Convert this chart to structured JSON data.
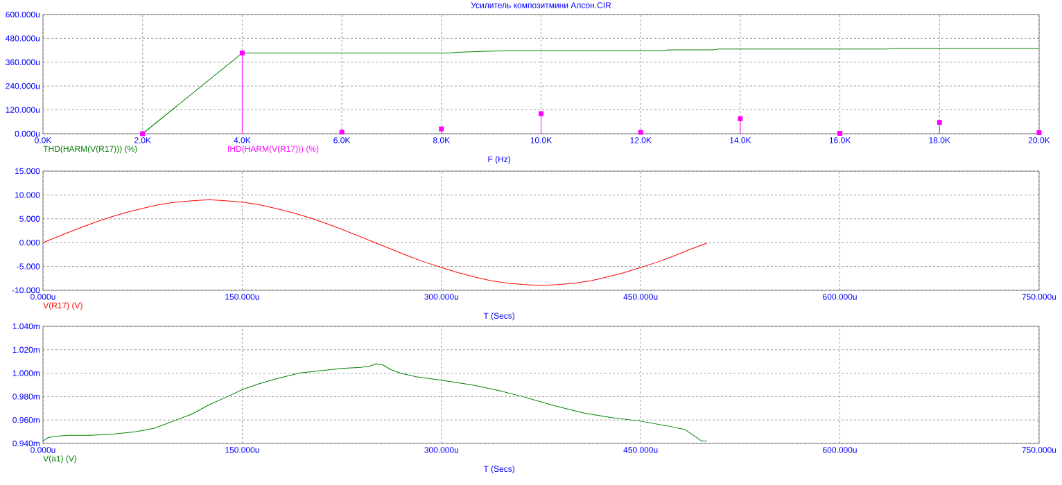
{
  "chart_data": [
    {
      "type": "line",
      "title": "Усилитель композитмини Алсон.CIR",
      "xlabel": "F (Hz)",
      "xlim": [
        0,
        20000
      ],
      "xticks": [
        {
          "value": 0,
          "label": "0.0K"
        },
        {
          "value": 2000,
          "label": "2.0K"
        },
        {
          "value": 4000,
          "label": "4.0K"
        },
        {
          "value": 6000,
          "label": "6.0K"
        },
        {
          "value": 8000,
          "label": "8.0K"
        },
        {
          "value": 10000,
          "label": "10.0K"
        },
        {
          "value": 12000,
          "label": "12.0K"
        },
        {
          "value": 14000,
          "label": "14.0K"
        },
        {
          "value": 16000,
          "label": "16.0K"
        },
        {
          "value": 18000,
          "label": "18.0K"
        },
        {
          "value": 20000,
          "label": "20.0K"
        }
      ],
      "ylim": [
        0,
        600
      ],
      "yticks": [
        {
          "value": 0,
          "label": "0.000u"
        },
        {
          "value": 120,
          "label": "120.000u"
        },
        {
          "value": 240,
          "label": "240.000u"
        },
        {
          "value": 360,
          "label": "360.000u"
        },
        {
          "value": 480,
          "label": "480.000u"
        },
        {
          "value": 600,
          "label": "600.000u"
        }
      ],
      "grid": true,
      "legend": "bottom left",
      "series": [
        {
          "name": "THD(HARM(V(R17))) (%)",
          "type": "line",
          "color": "#008000",
          "x": [
            2000,
            4000,
            8200,
            8300,
            8800,
            9300,
            12450,
            12550,
            13450,
            13550,
            16950,
            17050,
            20000
          ],
          "values": [
            0,
            406,
            406,
            410,
            414,
            418,
            418,
            422,
            422,
            426,
            426,
            430,
            430
          ]
        },
        {
          "name": "IHD(HARM(V(R17))) (%)",
          "type": "lollipop",
          "marker": "square",
          "color": "#ff00ff",
          "x": [
            2000,
            4000,
            6000,
            8000,
            10000,
            12000,
            14000,
            16000,
            18000,
            20000
          ],
          "values": [
            0,
            406,
            8,
            24,
            101,
            7,
            76,
            2,
            57,
            5
          ]
        }
      ]
    },
    {
      "type": "line",
      "xlabel": "T (Secs)",
      "xlim": [
        0,
        750
      ],
      "xticks": [
        {
          "value": 0,
          "label": "0.000u"
        },
        {
          "value": 150,
          "label": "150.000u"
        },
        {
          "value": 300,
          "label": "300.000u"
        },
        {
          "value": 450,
          "label": "450.000u"
        },
        {
          "value": 600,
          "label": "600.000u"
        },
        {
          "value": 750,
          "label": "750.000u"
        }
      ],
      "ylim": [
        -10,
        15
      ],
      "yticks": [
        {
          "value": -10,
          "label": "-10.000"
        },
        {
          "value": -5,
          "label": "-5.000"
        },
        {
          "value": 0,
          "label": "0.000"
        },
        {
          "value": 5,
          "label": "5.000"
        },
        {
          "value": 10,
          "label": "10.000"
        },
        {
          "value": 15,
          "label": "15.000"
        }
      ],
      "grid": true,
      "legend": "bottom left",
      "series": [
        {
          "name": "V(R17) (V)",
          "color": "#ff0000",
          "x": [
            0,
            12.5,
            25,
            37.5,
            50,
            62.5,
            75,
            87.5,
            100,
            112.5,
            125,
            137.5,
            150,
            162.5,
            175,
            187.5,
            200,
            212.5,
            225,
            237.5,
            250,
            262.5,
            275,
            287.5,
            300,
            312.5,
            325,
            337.5,
            350,
            362.5,
            375,
            387.5,
            400,
            412.5,
            425,
            437.5,
            450,
            462.5,
            475,
            487.5,
            500
          ],
          "values": [
            0,
            1.4,
            2.8,
            4.1,
            5.3,
            6.3,
            7.2,
            8.0,
            8.5,
            8.8,
            9.0,
            8.8,
            8.5,
            8.0,
            7.2,
            6.3,
            5.3,
            4.1,
            2.8,
            1.4,
            0,
            -1.4,
            -2.8,
            -4.1,
            -5.2,
            -6.3,
            -7.2,
            -8.0,
            -8.5,
            -8.8,
            -9.0,
            -8.8,
            -8.5,
            -8.0,
            -7.2,
            -6.3,
            -5.2,
            -4.1,
            -2.8,
            -1.4,
            -0.1
          ]
        }
      ]
    },
    {
      "type": "line",
      "xlabel": "T (Secs)",
      "xlim": [
        0,
        750
      ],
      "xticks": [
        {
          "value": 0,
          "label": "0.000u"
        },
        {
          "value": 150,
          "label": "150.000u"
        },
        {
          "value": 300,
          "label": "300.000u"
        },
        {
          "value": 450,
          "label": "450.000u"
        },
        {
          "value": 600,
          "label": "600.000u"
        },
        {
          "value": 750,
          "label": "750.000u"
        }
      ],
      "ylim": [
        0.94,
        1.04
      ],
      "yticks": [
        {
          "value": 0.94,
          "label": "0.940m"
        },
        {
          "value": 0.96,
          "label": "0.960m"
        },
        {
          "value": 0.98,
          "label": "0.980m"
        },
        {
          "value": 1.0,
          "label": "1.000m"
        },
        {
          "value": 1.02,
          "label": "1.020m"
        },
        {
          "value": 1.04,
          "label": "1.040m"
        }
      ],
      "grid": true,
      "legend": "bottom left",
      "series": [
        {
          "name": "V(a1) (V)",
          "color": "#008000",
          "x": [
            0,
            4,
            9,
            19,
            36,
            53,
            70,
            84,
            98,
            112,
            125,
            139,
            150,
            163,
            175,
            193,
            208,
            225,
            239,
            246,
            251,
            256,
            262,
            269,
            281,
            300,
            323,
            344,
            361,
            386,
            407,
            428,
            450,
            470,
            483,
            491,
            496,
            500
          ],
          "values": [
            0.942,
            0.945,
            0.946,
            0.947,
            0.947,
            0.948,
            0.95,
            0.953,
            0.959,
            0.965,
            0.973,
            0.98,
            0.986,
            0.991,
            0.995,
            1.0,
            1.002,
            1.004,
            1.005,
            1.006,
            1.008,
            1.007,
            1.003,
            1.0,
            0.997,
            0.994,
            0.99,
            0.985,
            0.98,
            0.972,
            0.966,
            0.962,
            0.959,
            0.955,
            0.952,
            0.946,
            0.942,
            0.942
          ]
        }
      ]
    }
  ]
}
